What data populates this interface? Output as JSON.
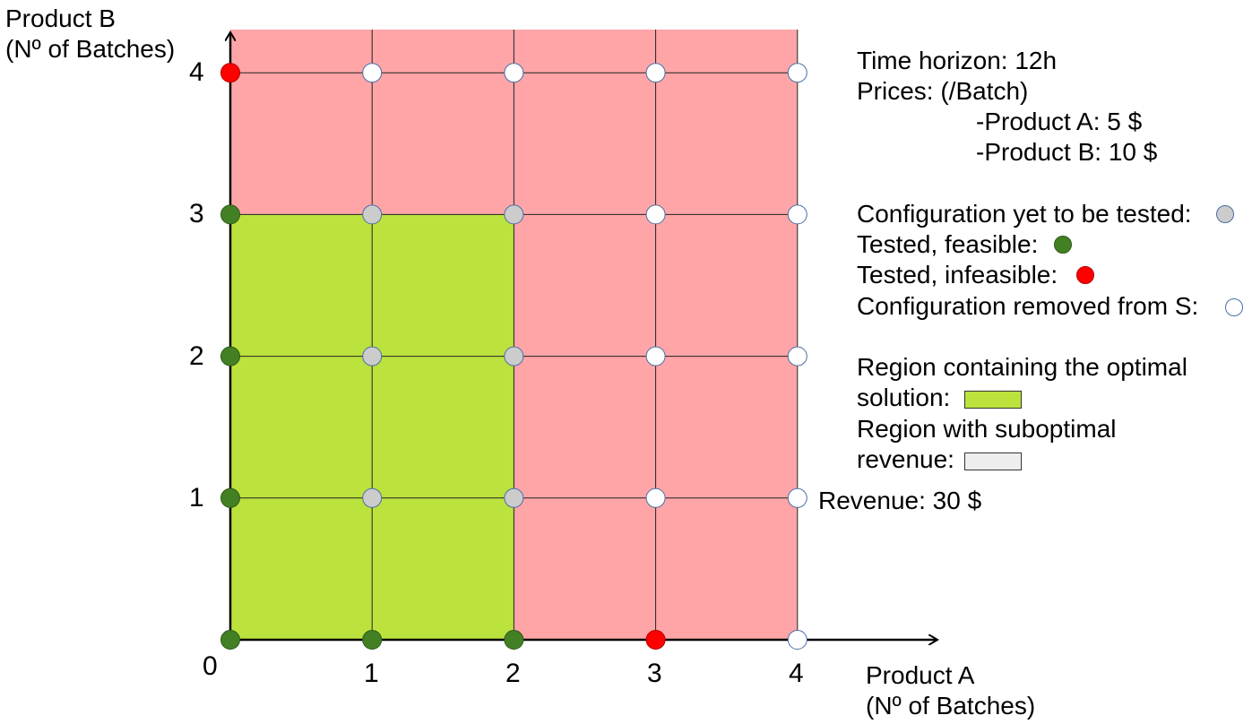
{
  "axes": {
    "y_title_line1": "Product B",
    "y_title_line2": "(Nº of Batches)",
    "x_title_line1": "Product A",
    "x_title_line2": "(Nº of Batches)",
    "origin_label": "0",
    "x_ticks": [
      "1",
      "2",
      "3",
      "4"
    ],
    "y_ticks": [
      "1",
      "2",
      "3",
      "4"
    ]
  },
  "info": {
    "time_horizon": "Time horizon: 12h",
    "prices_heading": "Prices: (/Batch)",
    "price_a": "-Product A: 5 $",
    "price_b": "-Product B: 10 $"
  },
  "legend": {
    "untested": "Configuration yet to be tested:",
    "feasible": "Tested, feasible:",
    "infeasible": "Tested, infeasible:",
    "removed": "Configuration removed from S:",
    "optimal_region_line1": "Region containing the optimal",
    "optimal_region_line2": "solution:",
    "suboptimal_region_line1": "Region with suboptimal",
    "suboptimal_region_line2": "revenue:"
  },
  "revenue_label": "Revenue: 30 $",
  "colors": {
    "suboptimal_fill": "#ffa5a7",
    "optimal_fill": "#bce23d",
    "untested": "#cccccc",
    "feasible": "#438024",
    "infeasible": "#ff0000",
    "removed": "#ffffff",
    "legend_suboptimal_swatch": "#eeeeee"
  },
  "grid_points": [
    {
      "a": 0,
      "b": 0,
      "state": "feasible"
    },
    {
      "a": 1,
      "b": 0,
      "state": "feasible"
    },
    {
      "a": 2,
      "b": 0,
      "state": "feasible"
    },
    {
      "a": 3,
      "b": 0,
      "state": "infeasible"
    },
    {
      "a": 4,
      "b": 0,
      "state": "removed"
    },
    {
      "a": 0,
      "b": 1,
      "state": "feasible"
    },
    {
      "a": 1,
      "b": 1,
      "state": "untested"
    },
    {
      "a": 2,
      "b": 1,
      "state": "untested"
    },
    {
      "a": 3,
      "b": 1,
      "state": "removed"
    },
    {
      "a": 4,
      "b": 1,
      "state": "removed"
    },
    {
      "a": 0,
      "b": 2,
      "state": "feasible"
    },
    {
      "a": 1,
      "b": 2,
      "state": "untested"
    },
    {
      "a": 2,
      "b": 2,
      "state": "untested"
    },
    {
      "a": 3,
      "b": 2,
      "state": "removed"
    },
    {
      "a": 4,
      "b": 2,
      "state": "removed"
    },
    {
      "a": 0,
      "b": 3,
      "state": "feasible"
    },
    {
      "a": 1,
      "b": 3,
      "state": "untested"
    },
    {
      "a": 2,
      "b": 3,
      "state": "untested"
    },
    {
      "a": 3,
      "b": 3,
      "state": "removed"
    },
    {
      "a": 4,
      "b": 3,
      "state": "removed"
    },
    {
      "a": 0,
      "b": 4,
      "state": "infeasible"
    },
    {
      "a": 1,
      "b": 4,
      "state": "removed"
    },
    {
      "a": 2,
      "b": 4,
      "state": "removed"
    },
    {
      "a": 3,
      "b": 4,
      "state": "removed"
    },
    {
      "a": 4,
      "b": 4,
      "state": "removed"
    }
  ],
  "optimal_region": {
    "a_max": 2,
    "b_max": 3
  }
}
